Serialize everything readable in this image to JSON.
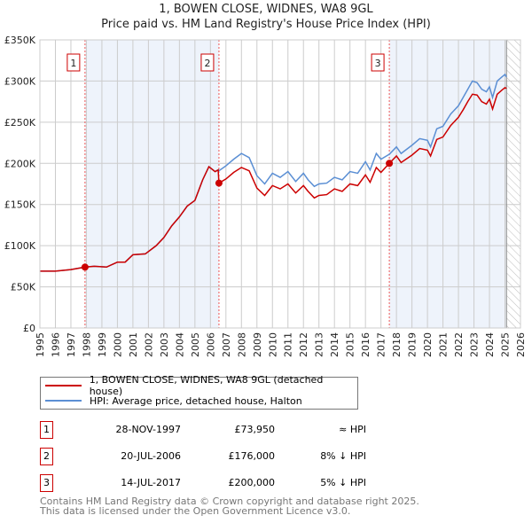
{
  "title": "1, BOWEN CLOSE, WIDNES, WA8 9GL",
  "subtitle": "Price paid vs. HM Land Registry's House Price Index (HPI)",
  "chart_data": {
    "type": "line",
    "title": "1, BOWEN CLOSE, WIDNES, WA8 9GL",
    "ylim": [
      0,
      350000
    ],
    "xlim": [
      1995,
      2026
    ],
    "yticks": [
      {
        "v": 0,
        "label": "£0"
      },
      {
        "v": 50000,
        "label": "£50K"
      },
      {
        "v": 100000,
        "label": "£100K"
      },
      {
        "v": 150000,
        "label": "£150K"
      },
      {
        "v": 200000,
        "label": "£200K"
      },
      {
        "v": 250000,
        "label": "£250K"
      },
      {
        "v": 300000,
        "label": "£300K"
      },
      {
        "v": 350000,
        "label": "£350K"
      }
    ],
    "xticks": [
      "1995",
      "1996",
      "1997",
      "1998",
      "1999",
      "2000",
      "2001",
      "2002",
      "2003",
      "2004",
      "2005",
      "2006",
      "2007",
      "2008",
      "2009",
      "2010",
      "2011",
      "2012",
      "2013",
      "2014",
      "2015",
      "2016",
      "2017",
      "2018",
      "2019",
      "2020",
      "2021",
      "2022",
      "2023",
      "2024",
      "2025",
      "2026"
    ],
    "grid": true,
    "x": [
      1995,
      1996,
      1997,
      1997.9,
      1998.5,
      1999.3,
      2000,
      2000.5,
      2001,
      2001.8,
      2002.5,
      2003,
      2003.5,
      2004,
      2004.5,
      2005,
      2005.5,
      2005.9,
      2006.3,
      2006.5,
      2006.55,
      2007,
      2007.5,
      2008,
      2008.5,
      2009,
      2009.5,
      2010,
      2010.5,
      2011,
      2011.5,
      2012,
      2012.3,
      2012.7,
      2013,
      2013.5,
      2014,
      2014.5,
      2015,
      2015.5,
      2016,
      2016.3,
      2016.7,
      2017,
      2017.54,
      2018,
      2018.3,
      2019,
      2019.5,
      2020,
      2020.2,
      2020.6,
      2021,
      2021.5,
      2022,
      2022.3,
      2022.6,
      2022.9,
      2023.2,
      2023.5,
      2023.8,
      2024,
      2024.2,
      2024.5,
      2024.8,
      2025,
      2025.1
    ],
    "series": [
      {
        "name": "HPI: Average price, detached house, Halton",
        "color": "#5b8fd4",
        "values": [
          69000,
          69000,
          71000,
          74000,
          75000,
          74000,
          80000,
          80000,
          89000,
          90000,
          100000,
          110000,
          124000,
          135000,
          148000,
          155000,
          180000,
          196000,
          190000,
          192000,
          191000,
          197000,
          205000,
          212000,
          207000,
          185000,
          175000,
          188000,
          183000,
          190000,
          178000,
          188000,
          180000,
          172000,
          175000,
          176000,
          183000,
          180000,
          190000,
          188000,
          202000,
          192000,
          212000,
          205000,
          211000,
          220000,
          212000,
          222000,
          230000,
          228000,
          220000,
          242000,
          245000,
          260000,
          270000,
          280000,
          290000,
          300000,
          298000,
          290000,
          287000,
          293000,
          280000,
          300000,
          305000,
          308000,
          305000
        ]
      },
      {
        "name": "1, BOWEN CLOSE, WIDNES, WA8 9GL (detached house)",
        "color": "#cc0000",
        "values": [
          69000,
          69000,
          71000,
          73950,
          75000,
          74000,
          80000,
          80000,
          89000,
          90000,
          100000,
          110000,
          124000,
          135000,
          148000,
          155000,
          180000,
          196000,
          190000,
          192000,
          176000,
          181000,
          189000,
          195000,
          191000,
          170000,
          161000,
          173000,
          169000,
          175000,
          164000,
          173000,
          166000,
          158000,
          161000,
          162000,
          169000,
          166000,
          175000,
          173000,
          186000,
          177000,
          195000,
          189000,
          200000,
          209000,
          201000,
          210000,
          218000,
          216000,
          209000,
          229000,
          232000,
          246000,
          256000,
          265000,
          275000,
          284000,
          283000,
          275000,
          272000,
          278000,
          266000,
          284000,
          289000,
          292000,
          291000
        ]
      }
    ],
    "sales": [
      {
        "n": "1",
        "x": 1997.91,
        "price": 73950,
        "date": "28-NOV-1997",
        "price_label": "£73,950",
        "hpi": "≈ HPI"
      },
      {
        "n": "2",
        "x": 2006.55,
        "price": 176000,
        "date": "20-JUL-2006",
        "price_label": "£176,000",
        "hpi": "8% ↓ HPI"
      },
      {
        "n": "3",
        "x": 2017.54,
        "price": 200000,
        "date": "14-JUL-2017",
        "price_label": "£200,000",
        "hpi": "5% ↓ HPI"
      }
    ],
    "data_end": 2025.1,
    "legend_position": "bottom"
  },
  "legend": {
    "property": "1, BOWEN CLOSE, WIDNES, WA8 9GL (detached house)",
    "hpi": "HPI: Average price, detached house, Halton"
  },
  "footer": {
    "line1": "Contains HM Land Registry data © Crown copyright and database right 2025.",
    "line2": "This data is licensed under the Open Government Licence v3.0."
  }
}
